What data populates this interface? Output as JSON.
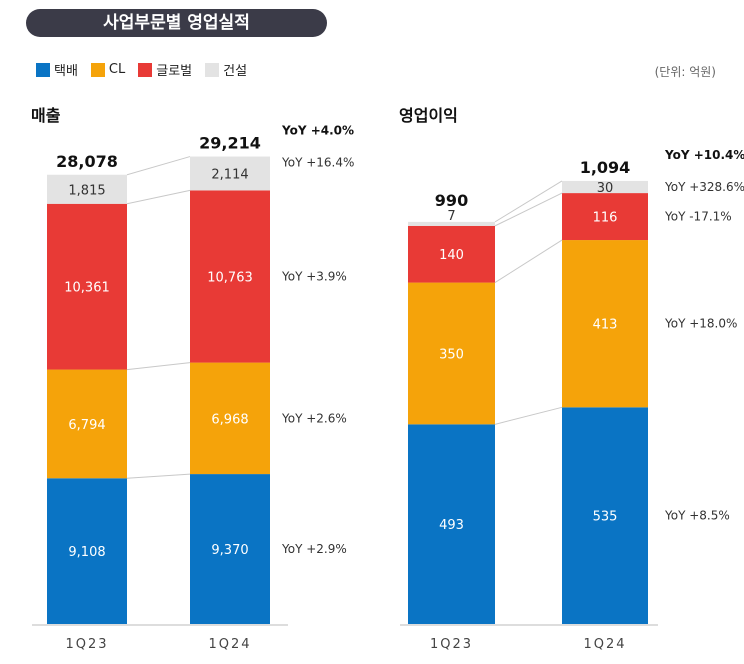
{
  "header": {
    "title": "사업부문별 영업실적"
  },
  "legend": [
    {
      "label": "택배",
      "color": "#0a74c4"
    },
    {
      "label": "CL",
      "color": "#f5a30a"
    },
    {
      "label": "글로벌",
      "color": "#e83a36"
    },
    {
      "label": "건설",
      "color": "#e3e3e3"
    }
  ],
  "unit_label": "(단위: 억원)",
  "chart_data": [
    {
      "type": "bar",
      "stacked": true,
      "title": "매출",
      "categories": [
        "1Q23",
        "1Q24"
      ],
      "totals": [
        "28,078",
        "29,214"
      ],
      "series": [
        {
          "name": "택배",
          "color": "#0a74c4",
          "values": [
            9108,
            9370
          ],
          "labels": [
            "9,108",
            "9,370"
          ]
        },
        {
          "name": "CL",
          "color": "#f5a30a",
          "values": [
            6794,
            6968
          ],
          "labels": [
            "6,794",
            "6,968"
          ]
        },
        {
          "name": "글로벌",
          "color": "#e83a36",
          "values": [
            10361,
            10763
          ],
          "labels": [
            "10,361",
            "10,763"
          ]
        },
        {
          "name": "건설",
          "color": "#e3e3e3",
          "values": [
            1815,
            2114
          ],
          "labels": [
            "1,815",
            "2,114"
          ]
        }
      ],
      "total_yoy": "YoY +4.0%",
      "segment_yoy": [
        "YoY +2.9%",
        "YoY +2.6%",
        "YoY +3.9%",
        "YoY +16.4%"
      ]
    },
    {
      "type": "bar",
      "stacked": true,
      "title": "영업이익",
      "categories": [
        "1Q23",
        "1Q24"
      ],
      "totals": [
        "990",
        "1,094"
      ],
      "series": [
        {
          "name": "택배",
          "color": "#0a74c4",
          "values": [
            493,
            535
          ],
          "labels": [
            "493",
            "535"
          ]
        },
        {
          "name": "CL",
          "color": "#f5a30a",
          "values": [
            350,
            413
          ],
          "labels": [
            "350",
            "413"
          ]
        },
        {
          "name": "글로벌",
          "color": "#e83a36",
          "values": [
            140,
            116
          ],
          "labels": [
            "140",
            "116"
          ]
        },
        {
          "name": "건설",
          "color": "#e3e3e3",
          "values": [
            7,
            30
          ],
          "labels": [
            "7",
            "30"
          ]
        }
      ],
      "total_yoy": "YoY +10.4%",
      "segment_yoy": [
        "YoY +8.5%",
        "YoY +18.0%",
        "YoY -17.1%",
        "YoY +328.6%"
      ]
    }
  ]
}
